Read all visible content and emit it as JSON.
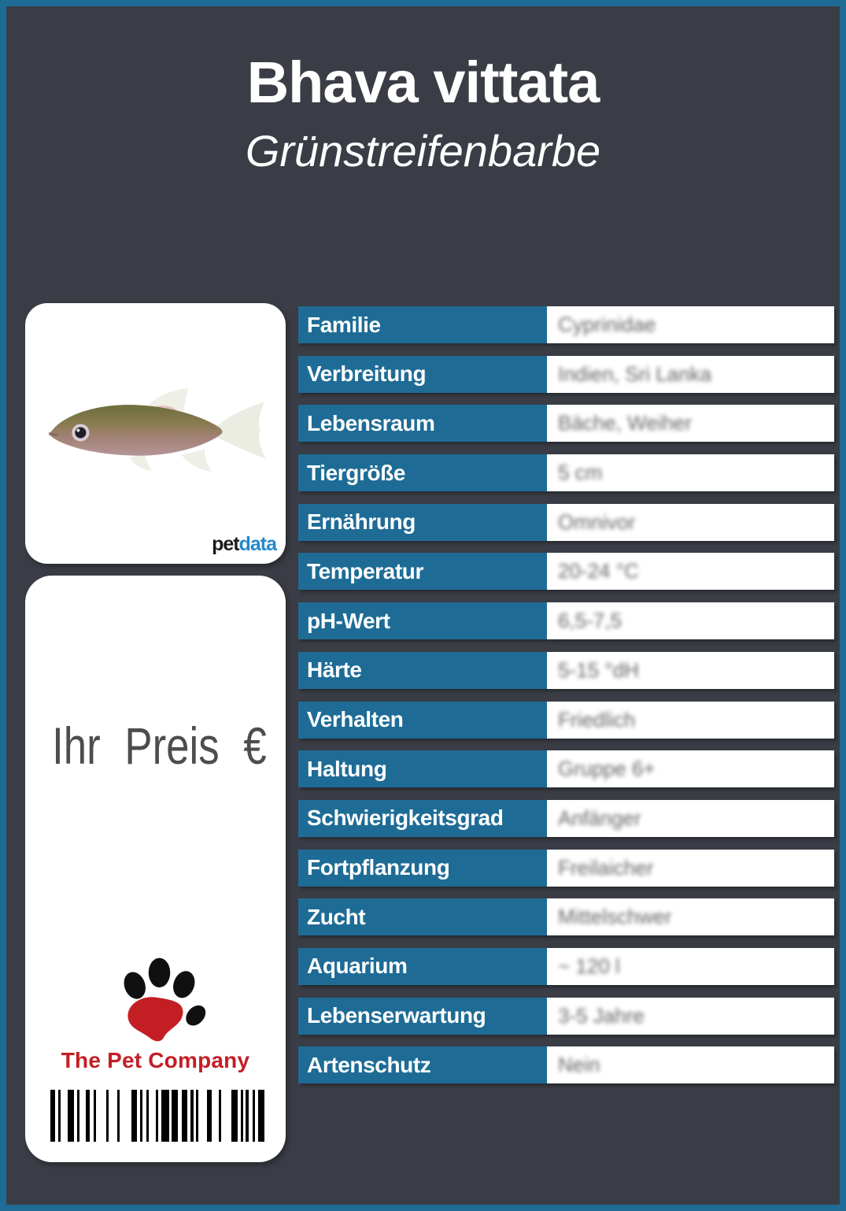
{
  "header": {
    "title": "Bhava vittata",
    "subtitle": "Grünstreifenbarbe"
  },
  "photo_card": {
    "brand_pet": "pet",
    "brand_data": "data"
  },
  "price_card": {
    "price_label": "Ihr Preis €",
    "company_name": "The Pet Company"
  },
  "table": {
    "rows": [
      {
        "label": "Familie",
        "value": "Cyprinidae"
      },
      {
        "label": "Verbreitung",
        "value": "Indien, Sri Lanka"
      },
      {
        "label": "Lebensraum",
        "value": "Bäche, Weiher"
      },
      {
        "label": "Tiergröße",
        "value": "5 cm"
      },
      {
        "label": "Ernährung",
        "value": "Omnivor"
      },
      {
        "label": "Temperatur",
        "value": "20-24 °C"
      },
      {
        "label": "pH-Wert",
        "value": "6,5-7,5"
      },
      {
        "label": "Härte",
        "value": "5-15 °dH"
      },
      {
        "label": "Verhalten",
        "value": "Friedlich"
      },
      {
        "label": "Haltung",
        "value": "Gruppe 6+"
      },
      {
        "label": "Schwierigkeitsgrad",
        "value": "Anfänger"
      },
      {
        "label": "Fortpflanzung",
        "value": "Freilaicher"
      },
      {
        "label": "Zucht",
        "value": "Mittelschwer"
      },
      {
        "label": "Aquarium",
        "value": "~ 120 l"
      },
      {
        "label": "Lebenserwartung",
        "value": "3-5 Jahre"
      },
      {
        "label": "Artenschutz",
        "value": "Nein"
      }
    ]
  },
  "barcode": {
    "widths": [
      6,
      4,
      3,
      9,
      8,
      4,
      3,
      8,
      5,
      5,
      3,
      13,
      3,
      11,
      3,
      15,
      7,
      4,
      3,
      5,
      3,
      9,
      3,
      4,
      10,
      3,
      8,
      5,
      7,
      4,
      4,
      3,
      3,
      11,
      6,
      9,
      3,
      13,
      8,
      4,
      3,
      3,
      4,
      5,
      3,
      4,
      8
    ]
  },
  "colors": {
    "accent_blue": "#1e6c96",
    "background_dark": "#3a3d45",
    "company_red": "#c41e25",
    "petdata_blue": "#2688c9"
  }
}
